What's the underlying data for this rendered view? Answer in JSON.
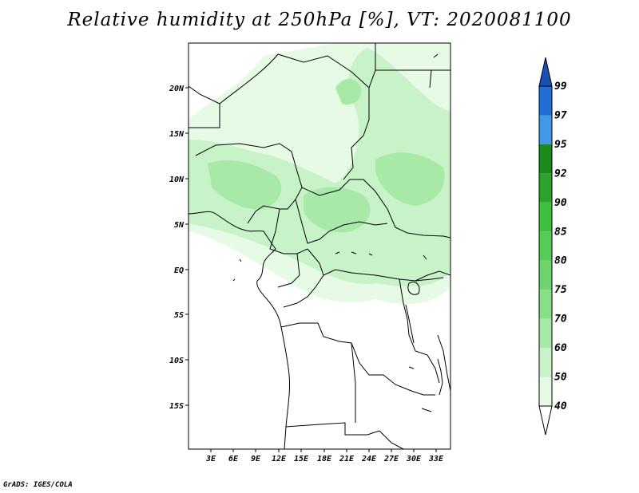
{
  "title": "Relative humidity at 250hPa [%], VT: 2020081100",
  "credit": "GrADS: IGES/COLA",
  "map": {
    "lat_labels": [
      "20N",
      "15N",
      "10N",
      "5N",
      "EQ",
      "5S",
      "10S",
      "15S"
    ],
    "lon_labels": [
      "3E",
      "6E",
      "9E",
      "12E",
      "15E",
      "18E",
      "21E",
      "24E",
      "27E",
      "30E",
      "33E"
    ]
  },
  "colorbar": {
    "levels": [
      "40",
      "50",
      "60",
      "70",
      "75",
      "80",
      "85",
      "90",
      "92",
      "95",
      "97",
      "99"
    ],
    "colors": [
      "#e6fae6",
      "#c8f2c8",
      "#a8e9a8",
      "#88df88",
      "#6ed56e",
      "#55cc55",
      "#3fbf3f",
      "#2ca42c",
      "#1a8a1a",
      "#3f98e8",
      "#1f6fd8",
      "#1a4fb4"
    ],
    "under_color": "#ffffff",
    "over_color": "#1a4fb4"
  }
}
